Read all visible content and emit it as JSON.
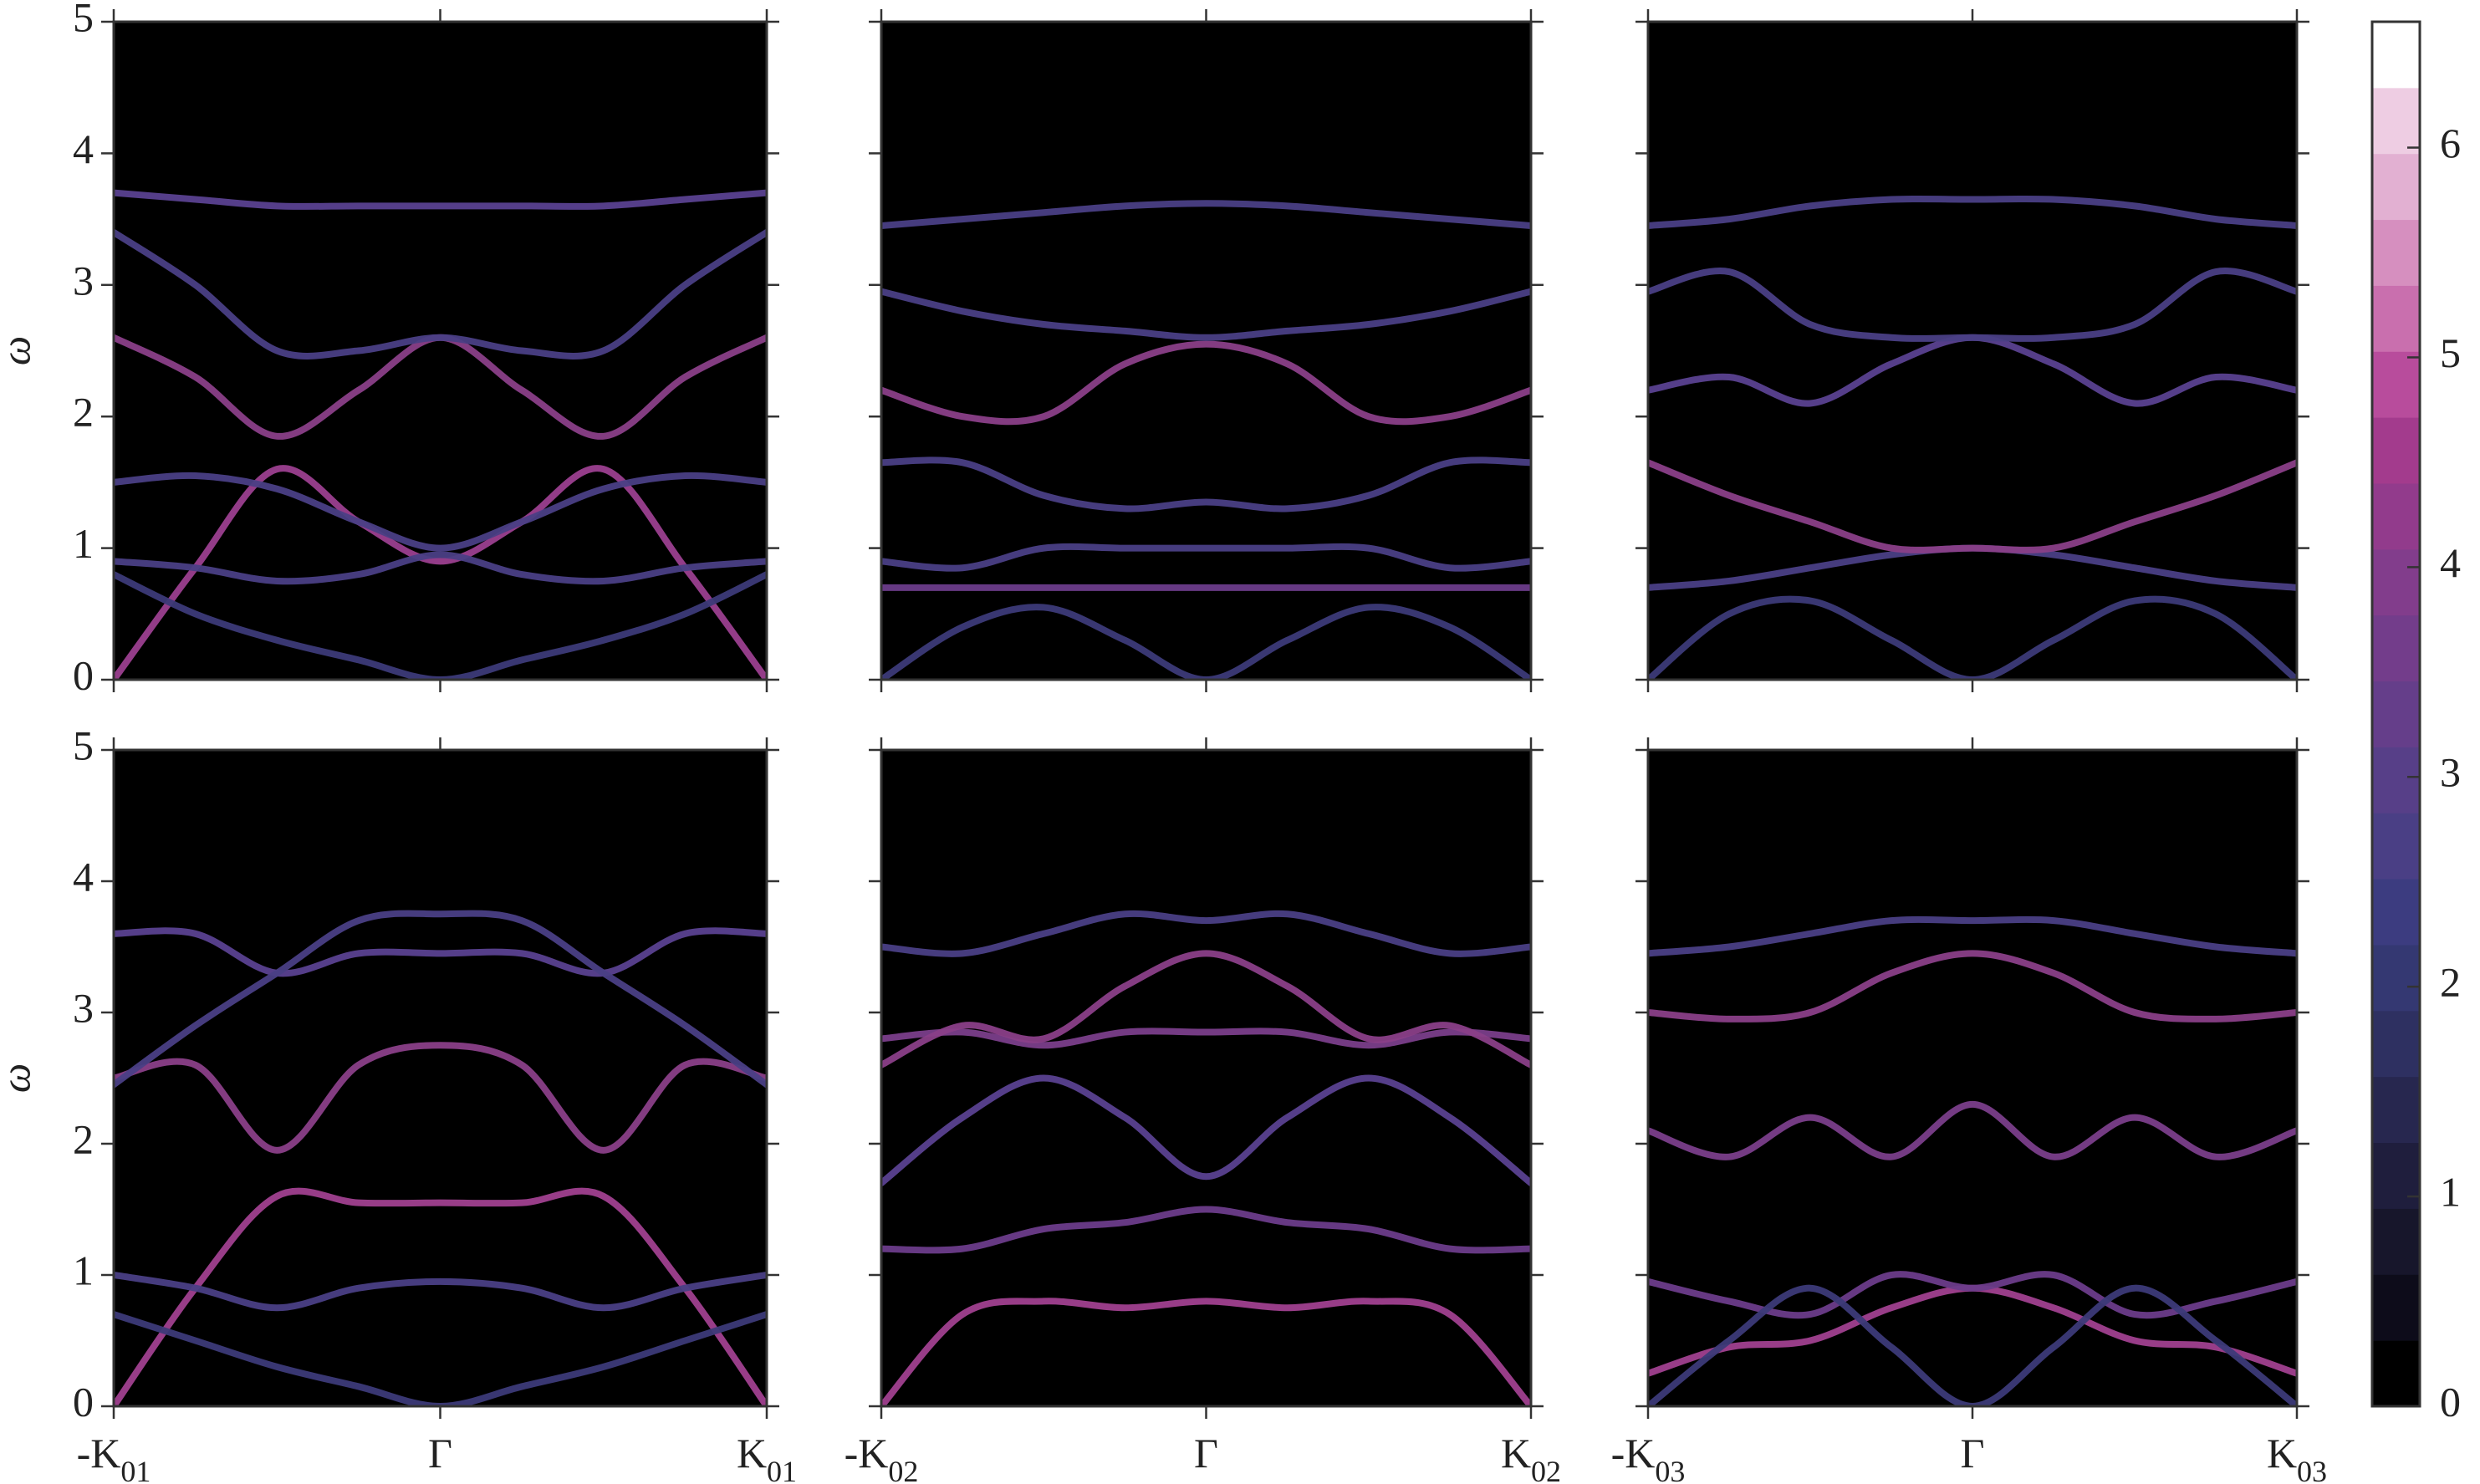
{
  "chart_data": [
    {
      "type": "line",
      "facecolor": "#000000",
      "ylabel": "ω",
      "show_xticklabels": false,
      "show_yticklabels": true,
      "x": [
        -1,
        -0.75,
        -0.5,
        -0.25,
        0,
        0.25,
        0.5,
        0.75,
        1
      ],
      "xlim": [
        -1,
        1
      ],
      "xticks": [
        -1,
        0,
        1
      ],
      "ylim": [
        0,
        5
      ],
      "yticks": [
        0,
        1,
        2,
        3,
        4,
        5
      ],
      "series": [
        {
          "color": "#9b3f8f",
          "values": [
            0,
            0.85,
            1.6,
            1.2,
            0.9,
            1.2,
            1.6,
            0.85,
            0
          ]
        },
        {
          "color": "#3c3a78",
          "values": [
            0.8,
            0.5,
            0.3,
            0.15,
            0,
            0.15,
            0.3,
            0.5,
            0.8
          ]
        },
        {
          "color": "#4a3f85",
          "values": [
            0.9,
            0.85,
            0.75,
            0.8,
            0.95,
            0.8,
            0.75,
            0.85,
            0.9
          ]
        },
        {
          "color": "#4a3f85",
          "values": [
            1.5,
            1.55,
            1.45,
            1.2,
            1.0,
            1.2,
            1.45,
            1.55,
            1.5
          ]
        },
        {
          "color": "#8a3f88",
          "values": [
            2.6,
            2.3,
            1.85,
            2.2,
            2.6,
            2.2,
            1.85,
            2.3,
            2.6
          ]
        },
        {
          "color": "#4a3f85",
          "values": [
            3.4,
            3.0,
            2.5,
            2.5,
            2.6,
            2.5,
            2.5,
            3.0,
            3.4
          ]
        },
        {
          "color": "#5a4190",
          "values": [
            3.7,
            3.65,
            3.6,
            3.6,
            3.6,
            3.6,
            3.6,
            3.65,
            3.7
          ]
        }
      ]
    },
    {
      "type": "line",
      "facecolor": "#000000",
      "show_xticklabels": false,
      "show_yticklabels": false,
      "x": [
        -1,
        -0.75,
        -0.5,
        -0.25,
        0,
        0.25,
        0.5,
        0.75,
        1
      ],
      "xlim": [
        -1,
        1
      ],
      "xticks": [
        -1,
        0,
        1
      ],
      "ylim": [
        0,
        5
      ],
      "yticks": [
        0,
        1,
        2,
        3,
        4,
        5
      ],
      "series": [
        {
          "color": "#3c3a78",
          "values": [
            0,
            0.4,
            0.55,
            0.3,
            0,
            0.3,
            0.55,
            0.4,
            0
          ]
        },
        {
          "color": "#6b3c8a",
          "values": [
            0.7,
            0.7,
            0.7,
            0.7,
            0.7,
            0.7,
            0.7,
            0.7,
            0.7
          ]
        },
        {
          "color": "#4a3f85",
          "values": [
            0.9,
            0.85,
            1.0,
            1.0,
            1.0,
            1.0,
            1.0,
            0.85,
            0.9
          ]
        },
        {
          "color": "#4a3f85",
          "values": [
            1.65,
            1.65,
            1.4,
            1.3,
            1.35,
            1.3,
            1.4,
            1.65,
            1.65
          ]
        },
        {
          "color": "#8a3f88",
          "values": [
            2.2,
            2.0,
            2.0,
            2.4,
            2.55,
            2.4,
            2.0,
            2.0,
            2.2
          ]
        },
        {
          "color": "#4a3f85",
          "values": [
            2.95,
            2.8,
            2.7,
            2.65,
            2.6,
            2.65,
            2.7,
            2.8,
            2.95
          ]
        },
        {
          "color": "#4a3f85",
          "values": [
            3.45,
            3.5,
            3.55,
            3.6,
            3.62,
            3.6,
            3.55,
            3.5,
            3.45
          ]
        }
      ]
    },
    {
      "type": "line",
      "facecolor": "#000000",
      "show_xticklabels": false,
      "show_yticklabels": false,
      "x": [
        -1,
        -0.75,
        -0.5,
        -0.25,
        0,
        0.25,
        0.5,
        0.75,
        1
      ],
      "xlim": [
        -1,
        1
      ],
      "xticks": [
        -1,
        0,
        1
      ],
      "ylim": [
        0,
        5
      ],
      "yticks": [
        0,
        1,
        2,
        3,
        4,
        5
      ],
      "series": [
        {
          "color": "#3c3a78",
          "values": [
            0,
            0.5,
            0.6,
            0.3,
            0,
            0.3,
            0.6,
            0.5,
            0
          ]
        },
        {
          "color": "#4a3f85",
          "values": [
            0.7,
            0.75,
            0.85,
            0.95,
            1.0,
            0.95,
            0.85,
            0.75,
            0.7
          ]
        },
        {
          "color": "#8a3f88",
          "values": [
            1.65,
            1.4,
            1.2,
            1.0,
            1.0,
            1.0,
            1.2,
            1.4,
            1.65
          ]
        },
        {
          "color": "#5a4190",
          "values": [
            2.2,
            2.3,
            2.1,
            2.4,
            2.6,
            2.4,
            2.1,
            2.3,
            2.2
          ]
        },
        {
          "color": "#4a3f85",
          "values": [
            2.95,
            3.1,
            2.7,
            2.6,
            2.6,
            2.6,
            2.7,
            3.1,
            2.95
          ]
        },
        {
          "color": "#4a3f85",
          "values": [
            3.45,
            3.5,
            3.6,
            3.65,
            3.65,
            3.65,
            3.6,
            3.5,
            3.45
          ]
        }
      ]
    },
    {
      "type": "line",
      "facecolor": "#000000",
      "ylabel": "ω",
      "show_xticklabels": true,
      "show_yticklabels": true,
      "x": [
        -1,
        -0.75,
        -0.5,
        -0.25,
        0,
        0.25,
        0.5,
        0.75,
        1
      ],
      "xlim": [
        -1,
        1
      ],
      "xticks": [
        {
          "value": -1,
          "label": "-K",
          "sub": "01"
        },
        {
          "value": 0,
          "label": "Γ"
        },
        {
          "value": 1,
          "label": "K",
          "sub": "01"
        }
      ],
      "ylim": [
        0,
        5
      ],
      "yticks": [
        0,
        1,
        2,
        3,
        4,
        5
      ],
      "series": [
        {
          "color": "#a0408f",
          "values": [
            0,
            0.9,
            1.6,
            1.55,
            1.55,
            1.55,
            1.6,
            0.9,
            0
          ]
        },
        {
          "color": "#4a3f85",
          "values": [
            1.0,
            0.9,
            0.75,
            0.9,
            0.95,
            0.9,
            0.75,
            0.9,
            1.0
          ]
        },
        {
          "color": "#3c3a78",
          "values": [
            0.7,
            0.5,
            0.3,
            0.15,
            0,
            0.15,
            0.3,
            0.5,
            0.7
          ]
        },
        {
          "color": "#8a3f88",
          "values": [
            2.5,
            2.6,
            1.95,
            2.6,
            2.75,
            2.6,
            1.95,
            2.6,
            2.5
          ]
        },
        {
          "color": "#5a4190",
          "values": [
            3.6,
            3.6,
            3.3,
            3.45,
            3.45,
            3.45,
            3.3,
            3.6,
            3.6
          ]
        },
        {
          "color": "#4a3f85",
          "values": [
            2.45,
            2.9,
            3.3,
            3.7,
            3.75,
            3.7,
            3.3,
            2.9,
            2.45
          ]
        }
      ]
    },
    {
      "type": "line",
      "facecolor": "#000000",
      "show_xticklabels": true,
      "show_yticklabels": false,
      "x": [
        -1,
        -0.75,
        -0.5,
        -0.25,
        0,
        0.25,
        0.5,
        0.75,
        1
      ],
      "xlim": [
        -1,
        1
      ],
      "xticks": [
        {
          "value": -1,
          "label": "-K",
          "sub": "02"
        },
        {
          "value": 0,
          "label": "Γ"
        },
        {
          "value": 1,
          "label": "K",
          "sub": "02"
        }
      ],
      "ylim": [
        0,
        5
      ],
      "yticks": [
        0,
        1,
        2,
        3,
        4,
        5
      ],
      "series": [
        {
          "color": "#a0408f",
          "values": [
            0,
            0.7,
            0.8,
            0.75,
            0.8,
            0.75,
            0.8,
            0.7,
            0
          ]
        },
        {
          "color": "#6b3c8a",
          "values": [
            1.2,
            1.2,
            1.35,
            1.4,
            1.5,
            1.4,
            1.35,
            1.2,
            1.2
          ]
        },
        {
          "color": "#5a4190",
          "values": [
            1.7,
            2.2,
            2.5,
            2.2,
            1.75,
            2.2,
            2.5,
            2.2,
            1.7
          ]
        },
        {
          "color": "#7a3e8a",
          "values": [
            2.8,
            2.85,
            2.75,
            2.85,
            2.85,
            2.85,
            2.75,
            2.85,
            2.8
          ]
        },
        {
          "color": "#8a3f88",
          "values": [
            2.6,
            2.9,
            2.8,
            3.2,
            3.45,
            3.2,
            2.8,
            2.9,
            2.6
          ]
        },
        {
          "color": "#4a3f85",
          "values": [
            3.5,
            3.45,
            3.6,
            3.75,
            3.7,
            3.75,
            3.6,
            3.45,
            3.5
          ]
        }
      ]
    },
    {
      "type": "line",
      "facecolor": "#000000",
      "show_xticklabels": true,
      "show_yticklabels": false,
      "x": [
        -1,
        -0.75,
        -0.5,
        -0.25,
        0,
        0.25,
        0.5,
        0.75,
        1
      ],
      "xlim": [
        -1,
        1
      ],
      "xticks": [
        {
          "value": -1,
          "label": "-K",
          "sub": "03"
        },
        {
          "value": 0,
          "label": "Γ"
        },
        {
          "value": 1,
          "label": "K",
          "sub": "03"
        }
      ],
      "ylim": [
        0,
        5
      ],
      "yticks": [
        0,
        1,
        2,
        3,
        4,
        5
      ],
      "series": [
        {
          "color": "#a0408f",
          "values": [
            0.25,
            0.45,
            0.5,
            0.75,
            0.9,
            0.75,
            0.5,
            0.45,
            0.25
          ]
        },
        {
          "color": "#6b3c8a",
          "values": [
            0.95,
            0.8,
            0.7,
            1.0,
            0.9,
            1.0,
            0.7,
            0.8,
            0.95
          ]
        },
        {
          "color": "#3c3a78",
          "values": [
            0,
            0.5,
            0.9,
            0.45,
            0,
            0.45,
            0.9,
            0.5,
            0
          ]
        },
        {
          "color": "#7a3e8a",
          "values": [
            2.1,
            1.9,
            2.2,
            1.9,
            2.3,
            1.9,
            2.2,
            1.9,
            2.1
          ]
        },
        {
          "color": "#8a3f88",
          "values": [
            3.0,
            2.95,
            3.0,
            3.3,
            3.45,
            3.3,
            3.0,
            2.95,
            3.0
          ]
        },
        {
          "color": "#4a3f85",
          "values": [
            3.45,
            3.5,
            3.6,
            3.7,
            3.7,
            3.7,
            3.6,
            3.5,
            3.45
          ]
        }
      ]
    },
    {
      "type": "colorbar",
      "ylim": [
        0,
        6.6
      ],
      "yticks": [
        0,
        1,
        2,
        3,
        4,
        5,
        6
      ],
      "colors": [
        "#000000",
        "#0d0c1a",
        "#17162b",
        "#1f1e3d",
        "#27274f",
        "#2e3061",
        "#343872",
        "#3c3c80",
        "#4a3f85",
        "#573f88",
        "#653e8a",
        "#733d8b",
        "#823d8c",
        "#923b8c",
        "#a33b8d",
        "#b84c9c",
        "#c96fae",
        "#d68fbf",
        "#e2b0d2",
        "#eecde3",
        "#ffffff"
      ]
    }
  ]
}
